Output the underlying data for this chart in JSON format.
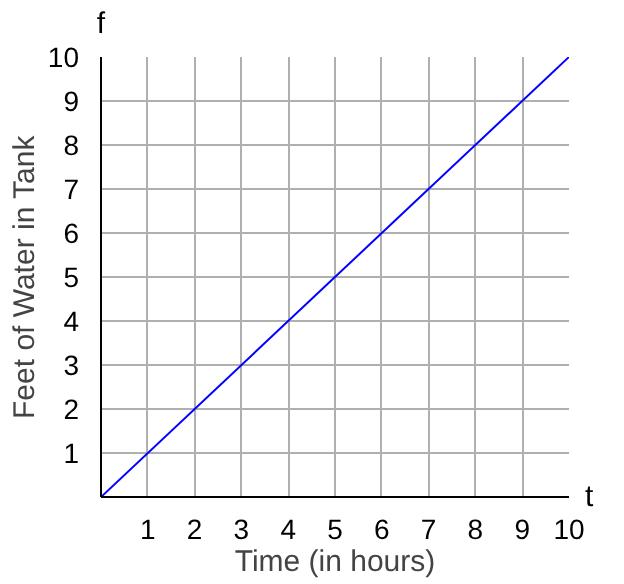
{
  "chart_data": {
    "type": "line",
    "xlabel": "Time (in hours)",
    "ylabel": "Feet of Water in Tank",
    "annotations": [
      "f",
      "t"
    ],
    "x": [
      0,
      10
    ],
    "series": [
      {
        "color": "#0000ff",
        "values": [
          0,
          10
        ]
      }
    ],
    "xlim": [
      0,
      10
    ],
    "ylim": [
      0,
      10
    ],
    "xticks": [
      1,
      2,
      3,
      4,
      5,
      6,
      7,
      8,
      9,
      10
    ],
    "yticks": [
      1,
      2,
      3,
      4,
      5,
      6,
      7,
      8,
      9,
      10
    ],
    "grid": true,
    "marker": "none",
    "line_style": "solid"
  }
}
